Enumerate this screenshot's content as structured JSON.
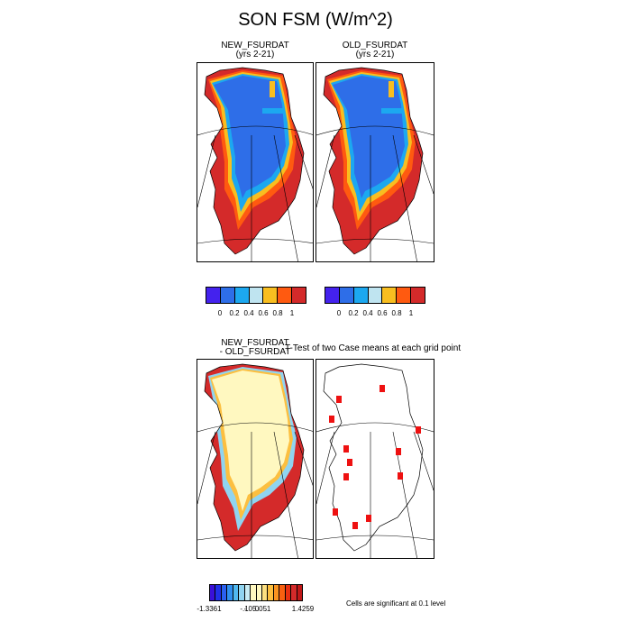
{
  "chart_data": [
    {
      "type": "heatmap",
      "title": "SON FSM (W/m^2)",
      "panels": [
        {
          "title": "NEW_FSURDAT",
          "subtitle": "(yrs 2-21)"
        },
        {
          "title": "OLD_FSURDAT",
          "subtitle": "(yrs 2-21)"
        }
      ],
      "colorbar": {
        "colors": [
          "#4422ee",
          "#2e6ee8",
          "#1ca8f0",
          "#bfe4f0",
          "#f8be20",
          "#ff5a10",
          "#d42a2a"
        ],
        "tick_labels": [
          "0",
          "0.2",
          "0.4",
          "0.6",
          "0.8",
          "1"
        ]
      }
    },
    {
      "type": "heatmap",
      "panels": [
        {
          "title": "NEW_FSURDAT",
          "subtitle": "- OLD_FSURDAT"
        },
        {
          "title": "T-Test of two Case means at each grid point"
        }
      ],
      "colorbar": {
        "colors": [
          "#3a10d8",
          "#2030e8",
          "#2a60f0",
          "#3090f0",
          "#50b8f0",
          "#90d4f0",
          "#c8ecf4",
          "#fff8c0",
          "#fff8c0",
          "#fde080",
          "#fcbf40",
          "#f99320",
          "#f86010",
          "#e83010",
          "#d42a2a",
          "#c01818"
        ],
        "tick_labels": [
          "-1.3361",
          "-.1",
          "-.05",
          ".0",
          ".05",
          ".1",
          "1.4259"
        ]
      },
      "note": "Cells are significant at 0.1 level"
    }
  ]
}
